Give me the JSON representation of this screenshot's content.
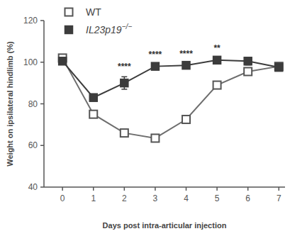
{
  "chart_data": {
    "type": "line",
    "x_label": "Days post intra-articular injection",
    "y_label": "Weight on ipsilateral hindlimb (%)",
    "x": [
      0,
      1,
      2,
      3,
      4,
      5,
      6,
      7
    ],
    "series": [
      {
        "name": "WT",
        "color": "#6e6e6e",
        "marker": "square-open",
        "values": [
          102,
          75,
          66,
          63.5,
          72.5,
          89,
          95.5,
          98
        ],
        "errors": [
          1,
          1.2,
          1.2,
          1.2,
          1,
          1.5,
          1.2,
          1
        ]
      },
      {
        "name": "IL23p19−/−",
        "color": "#3c3c3c",
        "marker": "square",
        "values": [
          100.5,
          83,
          90,
          98,
          98.5,
          101,
          100.5,
          97.5
        ],
        "errors": [
          1,
          1,
          3,
          1,
          0.8,
          1,
          1.8,
          1
        ]
      }
    ],
    "annotations": [
      {
        "x": 2,
        "text": "****"
      },
      {
        "x": 3,
        "text": "****"
      },
      {
        "x": 4,
        "text": "****"
      },
      {
        "x": 5,
        "text": "**"
      }
    ],
    "xlim": [
      -0.6,
      7.2
    ],
    "ylim": [
      40,
      120
    ],
    "xticks": [
      0,
      1,
      2,
      3,
      4,
      5,
      6,
      7
    ],
    "yticks": [
      40,
      60,
      80,
      100,
      120
    ],
    "grid": false,
    "legend": "top-left"
  }
}
